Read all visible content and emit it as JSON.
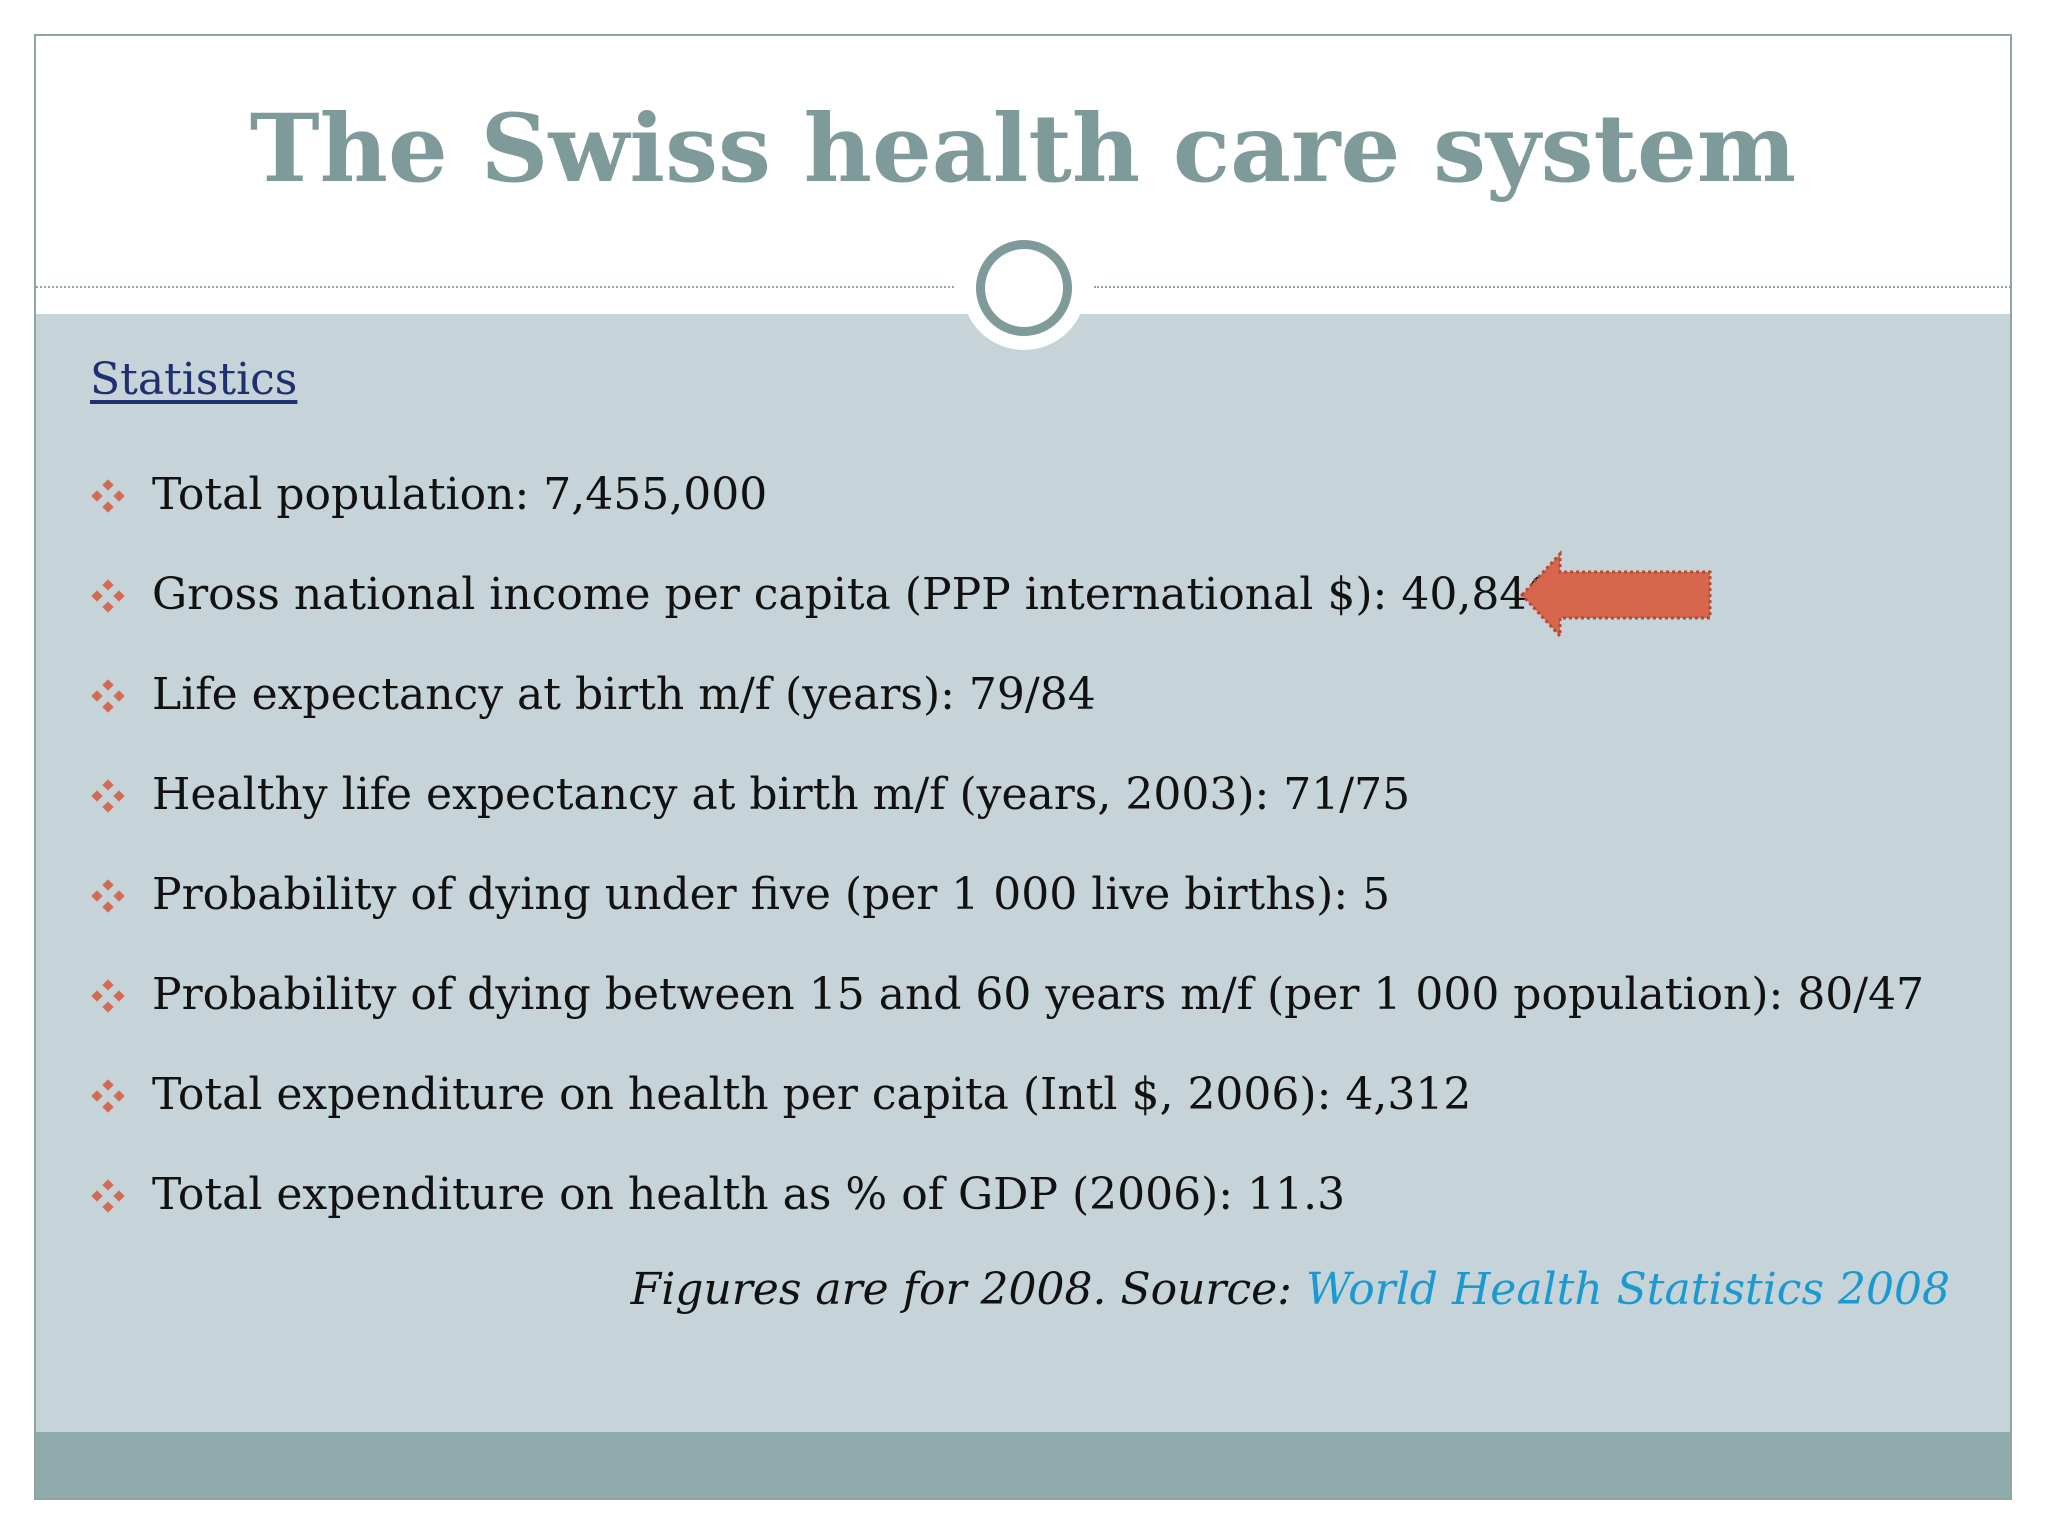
{
  "slide": {
    "title": "The Swiss health care system",
    "subheading": "Statistics",
    "items": [
      {
        "text": "Total population: 7,455,000"
      },
      {
        "text": "Gross national income per capita (PPP international $): 40,840"
      },
      {
        "text": "Life expectancy at birth m/f (years): 79/84"
      },
      {
        "text": "Healthy life expectancy at birth m/f (years, 2003): 71/75"
      },
      {
        "text": "Probability of dying under five (per 1 000 live births): 5"
      },
      {
        "text": "Probability of dying between 15 and 60 years m/f (per 1 000 population): 80/47"
      },
      {
        "text": "Total expenditure on health per capita (Intl $, 2006): 4,312"
      },
      {
        "text": "Total expenditure on health as % of GDP (2006): 11.3"
      }
    ],
    "source_prefix": "Figures are for 2008. Source: ",
    "source_link": "World Health Statistics 2008"
  },
  "icons": {
    "bullet": "diamond-bullet-icon",
    "arrow": "left-arrow-icon"
  },
  "colors": {
    "title": "#7f9a9a",
    "content_background": "#c6d3d8",
    "footer": "#8fabab",
    "bullet": "#d36a54",
    "arrow": "#d8664c",
    "link": "#1a9ad1",
    "subheading": "#1f2f6f"
  }
}
